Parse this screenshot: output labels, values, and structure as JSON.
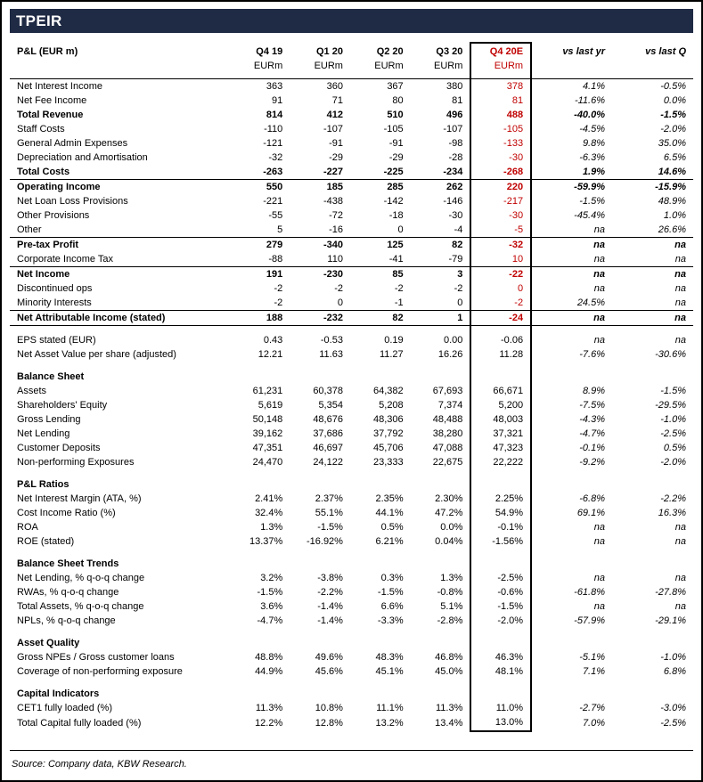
{
  "title": "TPEIR",
  "colors": {
    "header_bar": "#1F2A44",
    "highlight_red": "#C00000",
    "text": "#000000"
  },
  "table": {
    "header": {
      "label": "P&L (EUR m)",
      "columns": [
        "Q4 19",
        "Q1 20",
        "Q2 20",
        "Q3 20",
        "Q4 20E",
        "vs last yr",
        "vs last Q"
      ],
      "units": [
        "EURm",
        "EURm",
        "EURm",
        "EURm",
        "EURm",
        "",
        ""
      ]
    },
    "highlight_column_index": 4,
    "rows": [
      {
        "label": "Net Interest Income",
        "values": [
          "363",
          "360",
          "367",
          "380",
          "378",
          "4.1%",
          "-0.5%"
        ],
        "red": true
      },
      {
        "label": "Net Fee Income",
        "values": [
          "91",
          "71",
          "80",
          "81",
          "81",
          "-11.6%",
          "0.0%"
        ],
        "red": true
      },
      {
        "label": "Total Revenue",
        "values": [
          "814",
          "412",
          "510",
          "496",
          "488",
          "-40.0%",
          "-1.5%"
        ],
        "bold": true,
        "red": true
      },
      {
        "label": "Staff Costs",
        "values": [
          "-110",
          "-107",
          "-105",
          "-107",
          "-105",
          "-4.5%",
          "-2.0%"
        ],
        "red": true
      },
      {
        "label": "General Admin Expenses",
        "values": [
          "-121",
          "-91",
          "-91",
          "-98",
          "-133",
          "9.8%",
          "35.0%"
        ],
        "red": true
      },
      {
        "label": "Depreciation and Amortisation",
        "values": [
          "-32",
          "-29",
          "-29",
          "-28",
          "-30",
          "-6.3%",
          "6.5%"
        ],
        "red": true
      },
      {
        "label": "Total Costs",
        "values": [
          "-263",
          "-227",
          "-225",
          "-234",
          "-268",
          "1.9%",
          "14.6%"
        ],
        "bold": true,
        "red": true
      },
      {
        "label": "Operating Income",
        "values": [
          "550",
          "185",
          "285",
          "262",
          "220",
          "-59.9%",
          "-15.9%"
        ],
        "bold": true,
        "red": true,
        "topline": true
      },
      {
        "label": "Net Loan Loss Provisions",
        "values": [
          "-221",
          "-438",
          "-142",
          "-146",
          "-217",
          "-1.5%",
          "48.9%"
        ],
        "red": true
      },
      {
        "label": "Other Provisions",
        "values": [
          "-55",
          "-72",
          "-18",
          "-30",
          "-30",
          "-45.4%",
          "1.0%"
        ],
        "red": true
      },
      {
        "label": "Other",
        "values": [
          "5",
          "-16",
          "0",
          "-4",
          "-5",
          "na",
          "26.6%"
        ],
        "red": true
      },
      {
        "label": "Pre-tax Profit",
        "values": [
          "279",
          "-340",
          "125",
          "82",
          "-32",
          "na",
          "na"
        ],
        "bold": true,
        "red": true,
        "topline": true
      },
      {
        "label": "Corporate Income Tax",
        "values": [
          "-88",
          "110",
          "-41",
          "-79",
          "10",
          "na",
          "na"
        ],
        "red": true
      },
      {
        "label": "Net Income",
        "values": [
          "191",
          "-230",
          "85",
          "3",
          "-22",
          "na",
          "na"
        ],
        "bold": true,
        "red": true,
        "topline": true
      },
      {
        "label": "Discontinued ops",
        "values": [
          "-2",
          "-2",
          "-2",
          "-2",
          "0",
          "na",
          "na"
        ],
        "red": true
      },
      {
        "label": "Minority Interests",
        "values": [
          "-2",
          "0",
          "-1",
          "0",
          "-2",
          "24.5%",
          "na"
        ],
        "red": true
      },
      {
        "label": "Net Attributable Income (stated)",
        "values": [
          "188",
          "-232",
          "82",
          "1",
          "-24",
          "na",
          "na"
        ],
        "bold": true,
        "red": true,
        "topline": true,
        "bottomline": true
      },
      {
        "spacer": true
      },
      {
        "label": "EPS stated (EUR)",
        "values": [
          "0.43",
          "-0.53",
          "0.19",
          "0.00",
          "-0.06",
          "na",
          "na"
        ]
      },
      {
        "label": "Net Asset Value per share (adjusted)",
        "values": [
          "12.21",
          "11.63",
          "11.27",
          "16.26",
          "11.28",
          "-7.6%",
          "-30.6%"
        ]
      },
      {
        "spacer": true
      },
      {
        "label": "Balance Sheet",
        "section": true
      },
      {
        "label": "Assets",
        "values": [
          "61,231",
          "60,378",
          "64,382",
          "67,693",
          "66,671",
          "8.9%",
          "-1.5%"
        ]
      },
      {
        "label": "Shareholders' Equity",
        "values": [
          "5,619",
          "5,354",
          "5,208",
          "7,374",
          "5,200",
          "-7.5%",
          "-29.5%"
        ]
      },
      {
        "label": "Gross Lending",
        "values": [
          "50,148",
          "48,676",
          "48,306",
          "48,488",
          "48,003",
          "-4.3%",
          "-1.0%"
        ]
      },
      {
        "label": "Net Lending",
        "values": [
          "39,162",
          "37,686",
          "37,792",
          "38,280",
          "37,321",
          "-4.7%",
          "-2.5%"
        ]
      },
      {
        "label": "Customer Deposits",
        "values": [
          "47,351",
          "46,697",
          "45,706",
          "47,088",
          "47,323",
          "-0.1%",
          "0.5%"
        ]
      },
      {
        "label": "Non-performing Exposures",
        "values": [
          "24,470",
          "24,122",
          "23,333",
          "22,675",
          "22,222",
          "-9.2%",
          "-2.0%"
        ]
      },
      {
        "spacer": true
      },
      {
        "label": "P&L Ratios",
        "section": true
      },
      {
        "label": "Net Interest Margin (ATA, %)",
        "values": [
          "2.41%",
          "2.37%",
          "2.35%",
          "2.30%",
          "2.25%",
          "-6.8%",
          "-2.2%"
        ]
      },
      {
        "label": "Cost Income Ratio (%)",
        "values": [
          "32.4%",
          "55.1%",
          "44.1%",
          "47.2%",
          "54.9%",
          "69.1%",
          "16.3%"
        ]
      },
      {
        "label": "ROA",
        "values": [
          "1.3%",
          "-1.5%",
          "0.5%",
          "0.0%",
          "-0.1%",
          "na",
          "na"
        ]
      },
      {
        "label": "ROE (stated)",
        "values": [
          "13.37%",
          "-16.92%",
          "6.21%",
          "0.04%",
          "-1.56%",
          "na",
          "na"
        ]
      },
      {
        "spacer": true
      },
      {
        "label": "Balance Sheet Trends",
        "section": true
      },
      {
        "label": "Net Lending, % q-o-q change",
        "values": [
          "3.2%",
          "-3.8%",
          "0.3%",
          "1.3%",
          "-2.5%",
          "na",
          "na"
        ]
      },
      {
        "label": "RWAs, % q-o-q change",
        "values": [
          "-1.5%",
          "-2.2%",
          "-1.5%",
          "-0.8%",
          "-0.6%",
          "-61.8%",
          "-27.8%"
        ]
      },
      {
        "label": "Total Assets, % q-o-q change",
        "values": [
          "3.6%",
          "-1.4%",
          "6.6%",
          "5.1%",
          "-1.5%",
          "na",
          "na"
        ]
      },
      {
        "label": "NPLs, % q-o-q change",
        "values": [
          "-4.7%",
          "-1.4%",
          "-3.3%",
          "-2.8%",
          "-2.0%",
          "-57.9%",
          "-29.1%"
        ]
      },
      {
        "spacer": true
      },
      {
        "label": "Asset Quality",
        "section": true
      },
      {
        "label": "Gross NPEs / Gross customer loans",
        "values": [
          "48.8%",
          "49.6%",
          "48.3%",
          "46.8%",
          "46.3%",
          "-5.1%",
          "-1.0%"
        ]
      },
      {
        "label": "Coverage of non-performing exposure",
        "values": [
          "44.9%",
          "45.6%",
          "45.1%",
          "45.0%",
          "48.1%",
          "7.1%",
          "6.8%"
        ]
      },
      {
        "spacer": true
      },
      {
        "label": "Capital Indicators",
        "section": true
      },
      {
        "label": "CET1 fully loaded (%)",
        "values": [
          "11.3%",
          "10.8%",
          "11.1%",
          "11.3%",
          "11.0%",
          "-2.7%",
          "-3.0%"
        ]
      },
      {
        "label": "Total Capital fully loaded (%)",
        "values": [
          "12.2%",
          "12.8%",
          "13.2%",
          "13.4%",
          "13.0%",
          "7.0%",
          "-2.5%"
        ],
        "box_end": true
      }
    ]
  },
  "footer": {
    "source": "Source: Company data, KBW Research."
  }
}
